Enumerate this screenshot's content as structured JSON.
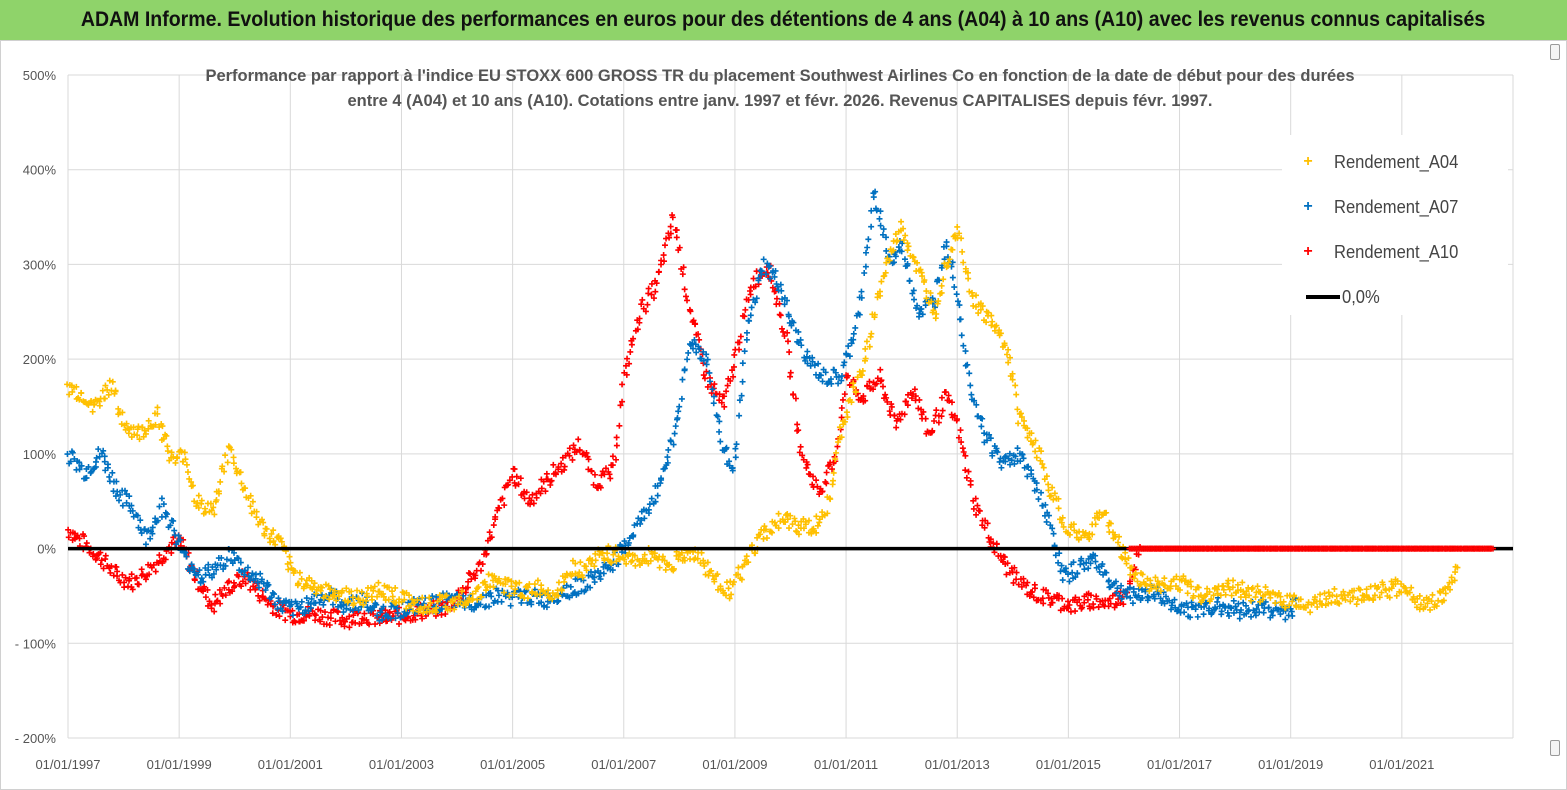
{
  "banner": {
    "title": "ADAM Informe. Evolution historique des performances en euros pour des détentions de 4 ans (A04) à 10 ans (A10) avec les revenus connus capitalisés"
  },
  "colors": {
    "banner_bg": "#8fd36a",
    "A04": "#ffc000",
    "A07": "#0070c0",
    "A10": "#ff0000",
    "zero_line": "#000000",
    "grid": "#d9d9d9"
  },
  "chart_data": {
    "type": "scatter",
    "title_line1": "Performance par rapport à l'indice EU STOXX 600 GROSS TR  du placement Southwest Airlines Co en fonction de la date de début pour des durées",
    "title_line2": "entre 4 (A04) et 10 ans (A10).  Cotations entre janv. 1997 et févr. 2026. Revenus CAPITALISES depuis févr. 1997.",
    "xlabel": "",
    "ylabel": "",
    "xlim": [
      "1997-01-01",
      "2023-01-01"
    ],
    "ylim": [
      -200,
      500
    ],
    "y_ticks": [
      -200,
      -100,
      0,
      100,
      200,
      300,
      400,
      500
    ],
    "y_tick_labels": [
      "- 200%",
      "- 100%",
      "0%",
      "100%",
      "200%",
      "300%",
      "400%",
      "500%"
    ],
    "x_ticks": [
      "1997-01-01",
      "1999-01-01",
      "2001-01-01",
      "2003-01-01",
      "2005-01-01",
      "2007-01-01",
      "2009-01-01",
      "2011-01-01",
      "2013-01-01",
      "2015-01-01",
      "2017-01-01",
      "2019-01-01",
      "2021-01-01"
    ],
    "x_tick_labels": [
      "01/01/1997",
      "01/01/1999",
      "01/01/2001",
      "01/01/2003",
      "01/01/2005",
      "01/01/2007",
      "01/01/2009",
      "01/01/2011",
      "01/01/2013",
      "01/01/2015",
      "01/01/2017",
      "01/01/2019",
      "01/01/2021"
    ],
    "grid": "horizontal",
    "legend_position": "top-right",
    "series": [
      {
        "name": "Rendement_A04",
        "color": "#ffc000",
        "marker": "+",
        "x": [
          1997.0,
          1997.3,
          1997.5,
          1997.8,
          1998.0,
          1998.3,
          1998.6,
          1998.9,
          1999.1,
          1999.3,
          1999.6,
          1999.9,
          2000.2,
          2000.5,
          2000.8,
          2001.1,
          2001.4,
          2001.7,
          2002.0,
          2002.3,
          2002.6,
          2002.9,
          2003.1,
          2003.4,
          2003.7,
          2004.0,
          2004.3,
          2004.6,
          2004.9,
          2005.2,
          2005.5,
          2005.8,
          2006.0,
          2006.3,
          2006.6,
          2006.9,
          2007.2,
          2007.5,
          2007.8,
          2008.0,
          2008.3,
          2008.6,
          2008.9,
          2009.2,
          2009.5,
          2009.8,
          2010.1,
          2010.4,
          2010.7,
          2010.9,
          2011.1,
          2011.3,
          2011.6,
          2011.8,
          2012.0,
          2012.3,
          2012.6,
          2012.8,
          2013.0,
          2013.3,
          2013.6,
          2013.9,
          2014.1,
          2014.4,
          2014.7,
          2015.0,
          2015.3,
          2015.6,
          2015.9,
          2016.2,
          2016.6,
          2017.0,
          2017.4,
          2017.8,
          2018.2,
          2018.6,
          2019.0,
          2019.4,
          2019.8,
          2020.2,
          2020.6,
          2021.0,
          2021.4,
          2021.8,
          2022.0
        ],
        "values": [
          170,
          160,
          150,
          175,
          130,
          120,
          140,
          90,
          100,
          50,
          40,
          105,
          60,
          20,
          5,
          -30,
          -40,
          -45,
          -50,
          -55,
          -42,
          -50,
          -55,
          -60,
          -58,
          -55,
          -50,
          -35,
          -40,
          -45,
          -42,
          -48,
          -20,
          -22,
          -5,
          -8,
          -15,
          -5,
          -20,
          -10,
          -5,
          -30,
          -45,
          -15,
          15,
          30,
          25,
          20,
          50,
          120,
          160,
          190,
          270,
          310,
          340,
          290,
          250,
          300,
          340,
          260,
          240,
          210,
          140,
          110,
          60,
          20,
          10,
          40,
          5,
          -30,
          -40,
          -35,
          -50,
          -40,
          -45,
          -50,
          -55,
          -60,
          -50,
          -50,
          -45,
          -40,
          -60,
          -50,
          -20
        ]
      },
      {
        "name": "Rendement_A07",
        "color": "#0070c0",
        "marker": "+",
        "x": [
          1997.0,
          1997.3,
          1997.6,
          1997.9,
          1998.2,
          1998.4,
          1998.7,
          1998.9,
          1999.1,
          1999.4,
          1999.7,
          1999.9,
          2000.2,
          2000.5,
          2000.8,
          2001.1,
          2001.4,
          2001.7,
          2002.0,
          2002.3,
          2002.6,
          2002.9,
          2003.2,
          2003.5,
          2003.8,
          2004.1,
          2004.4,
          2004.7,
          2005.0,
          2005.3,
          2005.6,
          2005.9,
          2006.2,
          2006.5,
          2006.8,
          2007.0,
          2007.3,
          2007.6,
          2007.9,
          2008.2,
          2008.5,
          2008.8,
          2009.0,
          2009.2,
          2009.5,
          2009.8,
          2010.0,
          2010.3,
          2010.6,
          2010.9,
          2011.1,
          2011.3,
          2011.5,
          2011.8,
          2012.0,
          2012.3,
          2012.6,
          2012.8,
          2013.0,
          2013.2,
          2013.5,
          2013.8,
          2014.1,
          2014.4,
          2014.7,
          2014.9,
          2015.2,
          2015.5,
          2015.8,
          2016.1,
          2016.5,
          2016.9,
          2017.3,
          2017.7,
          2018.1,
          2018.5,
          2018.9,
          2019.1
        ],
        "values": [
          100,
          80,
          100,
          60,
          40,
          10,
          45,
          20,
          -10,
          -30,
          -20,
          -5,
          -25,
          -35,
          -60,
          -65,
          -55,
          -50,
          -60,
          -55,
          -68,
          -65,
          -62,
          -60,
          -55,
          -58,
          -55,
          -50,
          -52,
          -50,
          -55,
          -45,
          -40,
          -30,
          -15,
          0,
          30,
          60,
          120,
          220,
          200,
          100,
          90,
          220,
          300,
          280,
          240,
          200,
          180,
          180,
          220,
          270,
          380,
          300,
          320,
          250,
          260,
          330,
          270,
          180,
          120,
          90,
          100,
          70,
          20,
          -30,
          -20,
          -10,
          -40,
          -50,
          -45,
          -60,
          -65,
          -60,
          -65,
          -62,
          -68,
          -60
        ]
      },
      {
        "name": "Rendement_A10",
        "color": "#ff0000",
        "marker": "+",
        "x": [
          1997.0,
          1997.3,
          1997.6,
          1997.9,
          1998.2,
          1998.5,
          1998.8,
          1999.0,
          1999.3,
          1999.6,
          1999.9,
          2000.2,
          2000.5,
          2000.8,
          2001.1,
          2001.4,
          2001.7,
          2002.0,
          2002.3,
          2002.6,
          2002.9,
          2003.2,
          2003.5,
          2003.8,
          2004.1,
          2004.4,
          2004.7,
          2005.0,
          2005.3,
          2005.6,
          2005.9,
          2006.2,
          2006.5,
          2006.8,
          2007.0,
          2007.3,
          2007.6,
          2007.9,
          2008.2,
          2008.5,
          2008.8,
          2009.0,
          2009.3,
          2009.6,
          2009.9,
          2010.2,
          2010.5,
          2010.8,
          2011.0,
          2011.3,
          2011.6,
          2011.9,
          2012.2,
          2012.5,
          2012.8,
          2013.0,
          2013.3,
          2013.6,
          2013.9,
          2014.2,
          2014.5,
          2014.8,
          2015.1,
          2015.4,
          2015.7,
          2016.0,
          2016.3,
          2016.8,
          2017.3,
          2017.8,
          2018.3,
          2018.8,
          2019.3,
          2019.8,
          2020.3,
          2020.8,
          2021.3,
          2021.8,
          2022.3,
          2022.6
        ],
        "values": [
          20,
          5,
          -10,
          -30,
          -35,
          -20,
          0,
          10,
          -30,
          -60,
          -40,
          -30,
          -50,
          -65,
          -70,
          -68,
          -72,
          -75,
          -70,
          -74,
          -72,
          -68,
          -65,
          -62,
          -45,
          -20,
          30,
          80,
          50,
          70,
          90,
          110,
          70,
          80,
          180,
          250,
          280,
          350,
          250,
          180,
          150,
          200,
          280,
          300,
          230,
          100,
          60,
          90,
          180,
          160,
          180,
          130,
          170,
          120,
          160,
          130,
          50,
          10,
          -20,
          -40,
          -50,
          -55,
          -60,
          -55,
          -58,
          -50,
          0,
          0,
          0,
          0,
          0,
          0,
          0,
          0,
          0,
          0,
          0,
          0,
          0,
          0
        ]
      },
      {
        "name": "0,0%",
        "color": "#000000",
        "line": true,
        "x": [
          1997.0,
          2023.0
        ],
        "values": [
          0,
          0
        ]
      }
    ]
  },
  "legend": {
    "items": [
      {
        "label": "Rendement_A04",
        "color": "#ffc000",
        "symbol": "+"
      },
      {
        "label": "Rendement_A07",
        "color": "#0070c0",
        "symbol": "+"
      },
      {
        "label": "Rendement_A10",
        "color": "#ff0000",
        "symbol": "+"
      },
      {
        "label": "0,0%",
        "color": "#000000",
        "symbol": "line"
      }
    ]
  }
}
